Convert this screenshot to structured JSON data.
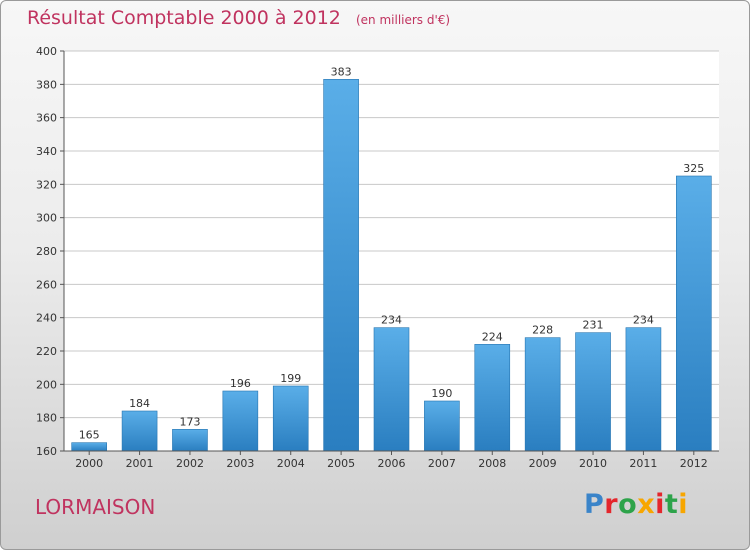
{
  "title": {
    "main": "Résultat Comptable 2000 à 2012",
    "unit": "(en milliers d'€)"
  },
  "city": "LORMAISON",
  "logo": {
    "text": "Proxiti",
    "letter_colors": [
      "#3a84c9",
      "#e4262c",
      "#2da34a",
      "#f7a600",
      "#e4262c",
      "#2da34a",
      "#f7a600"
    ]
  },
  "colors": {
    "bar_light": "#5aaee8",
    "bar_dark": "#2a7ec0",
    "grid": "#c8c8c8"
  },
  "chart_data": {
    "type": "bar",
    "title": "Résultat Comptable 2000 à 2012",
    "xlabel": "",
    "ylabel": "",
    "ylim": [
      160,
      400
    ],
    "yticks": [
      160,
      180,
      200,
      220,
      240,
      260,
      280,
      300,
      320,
      340,
      360,
      380,
      400
    ],
    "grid": true,
    "categories": [
      "2000",
      "2001",
      "2002",
      "2003",
      "2004",
      "2005",
      "2006",
      "2007",
      "2008",
      "2009",
      "2010",
      "2011",
      "2012"
    ],
    "values": [
      165,
      184,
      173,
      196,
      199,
      383,
      234,
      190,
      224,
      228,
      231,
      234,
      325
    ]
  }
}
